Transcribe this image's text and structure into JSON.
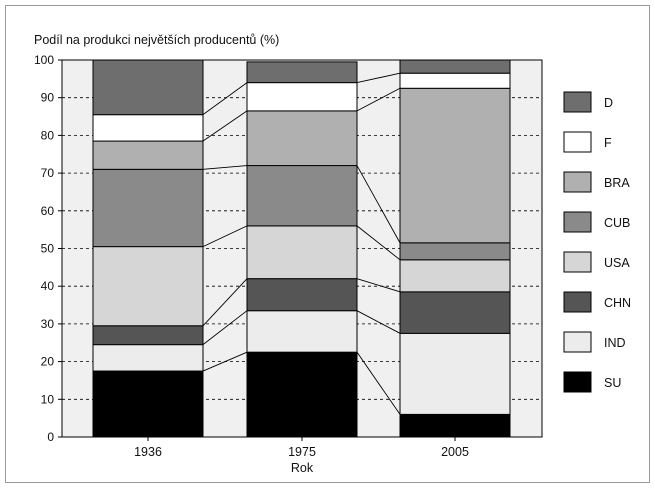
{
  "chart_data": {
    "type": "bar",
    "stacked": true,
    "title": "Podíl na produkci největších producentů (%)",
    "xlabel": "Rok",
    "ylabel": "",
    "ylim": [
      0,
      100
    ],
    "yticks": [
      0,
      10,
      20,
      30,
      40,
      50,
      60,
      70,
      80,
      90,
      100
    ],
    "grid": "horizontal dashed",
    "legend_position": "right",
    "categories": [
      "1936",
      "1975",
      "2005"
    ],
    "series": [
      {
        "name": "SU",
        "color": "#000000",
        "values": [
          17.5,
          22.5,
          6.0
        ]
      },
      {
        "name": "IND",
        "color": "#ececec",
        "values": [
          7.0,
          11.0,
          21.5
        ]
      },
      {
        "name": "CHN",
        "color": "#555555",
        "values": [
          5.0,
          8.5,
          11.0
        ]
      },
      {
        "name": "USA",
        "color": "#d6d6d6",
        "values": [
          21.0,
          14.0,
          8.5
        ]
      },
      {
        "name": "CUB",
        "color": "#8a8a8a",
        "values": [
          20.5,
          16.0,
          4.5
        ]
      },
      {
        "name": "BRA",
        "color": "#b0b0b0",
        "values": [
          7.5,
          14.5,
          41.0
        ]
      },
      {
        "name": "F",
        "color": "#ffffff",
        "values": [
          7.0,
          7.5,
          4.0
        ]
      },
      {
        "name": "D",
        "color": "#6e6e6e",
        "values": [
          14.5,
          5.5,
          3.5
        ]
      }
    ]
  }
}
